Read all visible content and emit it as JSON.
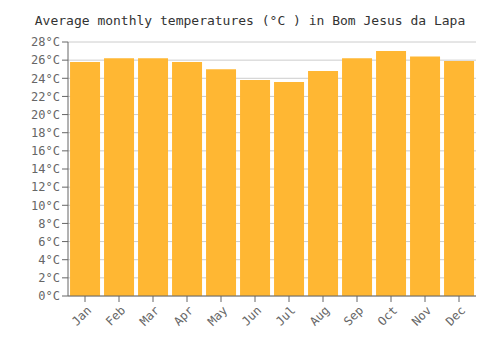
{
  "chart_data": {
    "type": "bar",
    "title": "Average monthly temperatures (°C ) in Bom Jesus da Lapa",
    "categories": [
      "Jan",
      "Feb",
      "Mar",
      "Apr",
      "May",
      "Jun",
      "Jul",
      "Aug",
      "Sep",
      "Oct",
      "Nov",
      "Dec"
    ],
    "values": [
      25.8,
      26.2,
      26.2,
      25.8,
      25.0,
      23.8,
      23.6,
      24.8,
      26.2,
      27.0,
      26.4,
      25.9
    ],
    "color": "#FFB733",
    "ylim": [
      0,
      28
    ],
    "yticks": [
      {
        "value": 0,
        "label": "0°C"
      },
      {
        "value": 2,
        "label": "2°C"
      },
      {
        "value": 4,
        "label": "4°C"
      },
      {
        "value": 6,
        "label": "6°C"
      },
      {
        "value": 8,
        "label": "8°C"
      },
      {
        "value": 10,
        "label": "10°C"
      },
      {
        "value": 12,
        "label": "12°C"
      },
      {
        "value": 14,
        "label": "14°C"
      },
      {
        "value": 16,
        "label": "16°C"
      },
      {
        "value": 18,
        "label": "18°C"
      },
      {
        "value": 20,
        "label": "20°C"
      },
      {
        "value": 22,
        "label": "22°C"
      },
      {
        "value": 24,
        "label": "24°C"
      },
      {
        "value": 26,
        "label": "26°C"
      },
      {
        "value": 28,
        "label": "28°C"
      }
    ],
    "grid": true
  }
}
